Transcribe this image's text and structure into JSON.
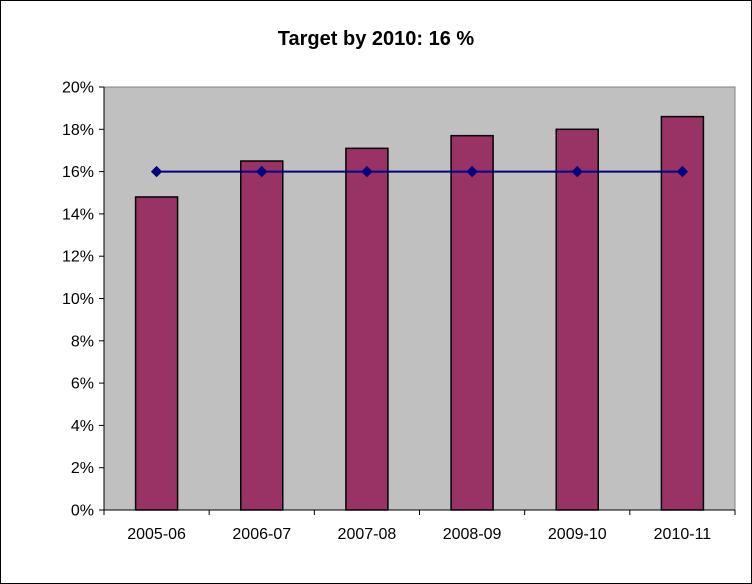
{
  "chart_data": {
    "type": "bar",
    "title": "Target by 2010:  16 %",
    "xlabel": "",
    "ylabel": "",
    "categories": [
      "2005-06",
      "2006-07",
      "2007-08",
      "2008-09",
      "2009-10",
      "2010-11"
    ],
    "series": [
      {
        "type": "bar",
        "values": [
          14.8,
          16.5,
          17.1,
          17.7,
          18.0,
          18.6
        ]
      },
      {
        "type": "line",
        "values": [
          16,
          16,
          16,
          16,
          16,
          16
        ]
      }
    ],
    "ylim": [
      0,
      20
    ],
    "ytick_labels": [
      "0%",
      "2%",
      "4%",
      "6%",
      "8%",
      "10%",
      "12%",
      "14%",
      "16%",
      "18%",
      "20%"
    ],
    "grid": false,
    "legend": "none",
    "colors": {
      "bar_fill": "#993366",
      "bar_stroke": "#000000",
      "line": "#000080",
      "marker": "#000080",
      "plot_background": "#C0C0C0",
      "page_background": "#FFFFFF"
    }
  }
}
